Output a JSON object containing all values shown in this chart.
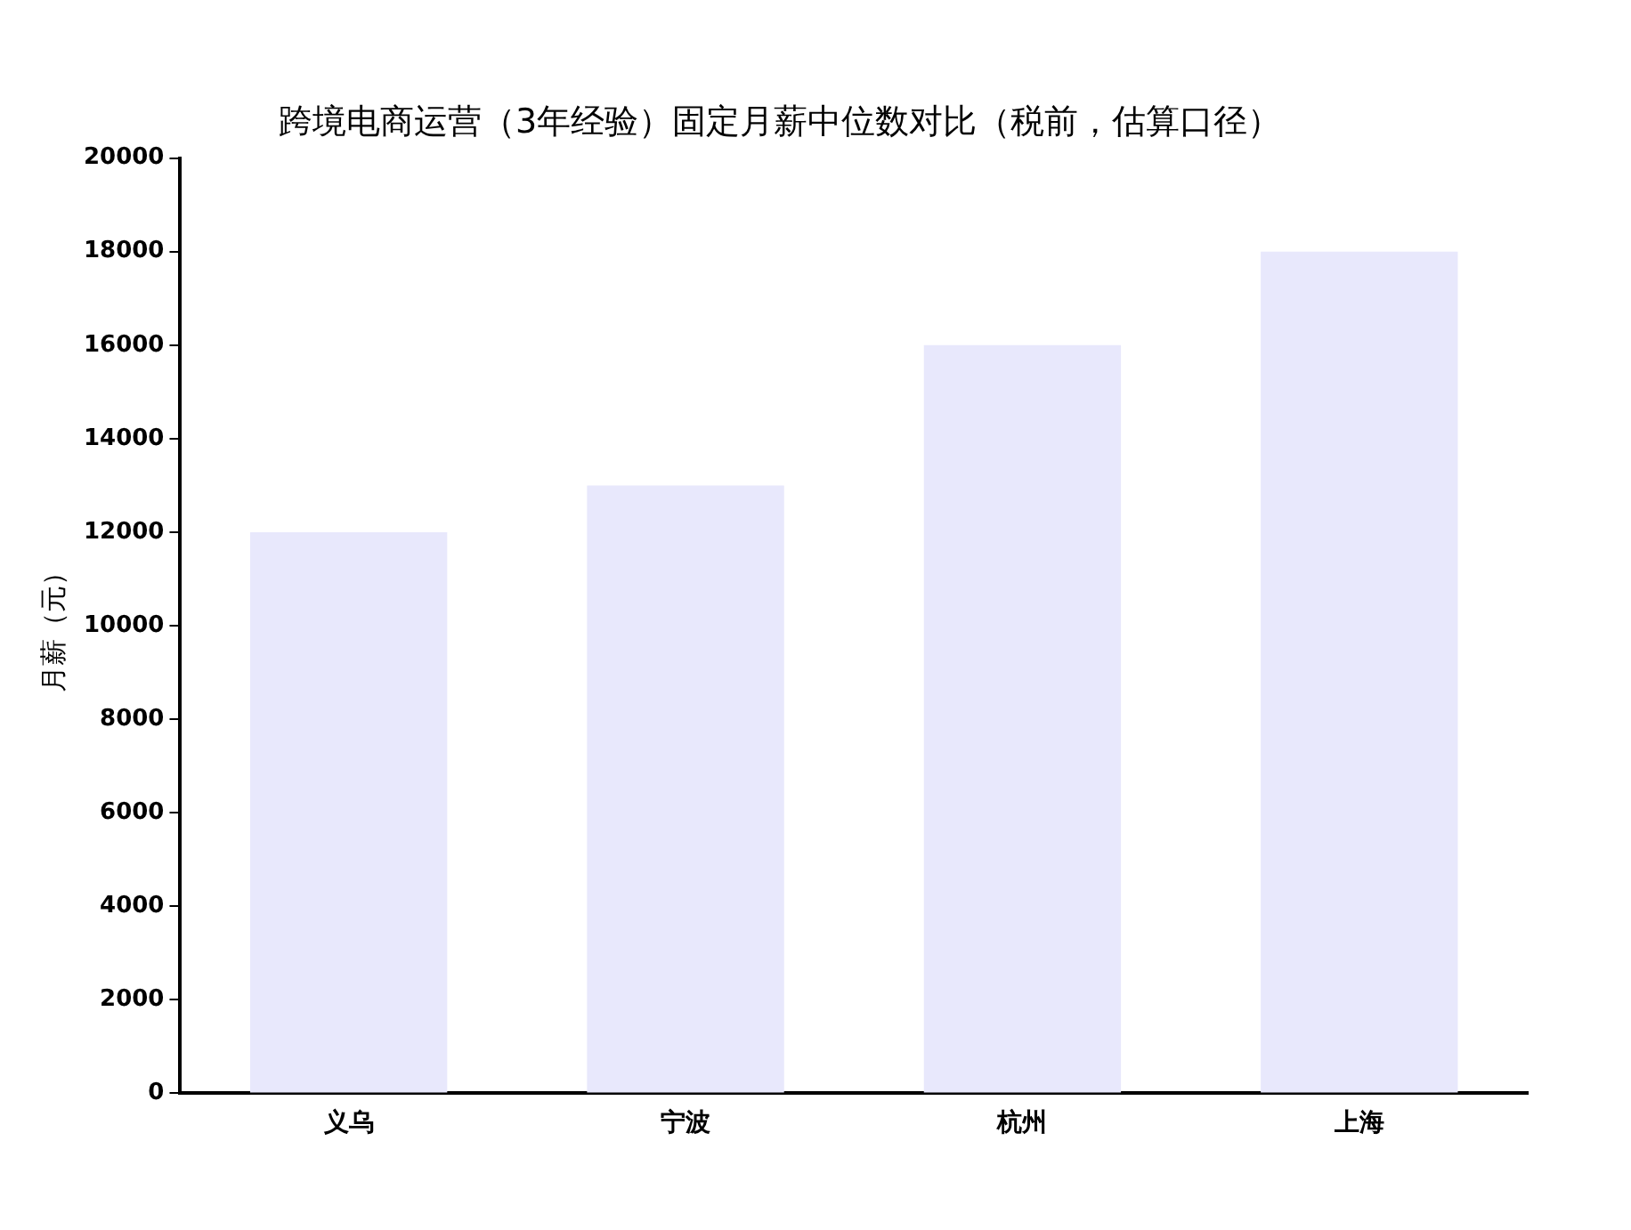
{
  "chart_data": {
    "type": "bar",
    "title": "跨境电商运营（3年经验）固定月薪中位数对比（税前，估算口径）",
    "ylabel": "月薪（元）",
    "categories": [
      "义乌",
      "宁波",
      "杭州",
      "上海"
    ],
    "values": [
      12000,
      13000,
      16000,
      18000
    ],
    "color": "#e8e8fc",
    "ylim": [
      0,
      20000
    ],
    "yticks": [
      0,
      2000,
      4000,
      6000,
      8000,
      10000,
      12000,
      14000,
      16000,
      18000,
      20000
    ],
    "grid": false,
    "legend": false
  }
}
